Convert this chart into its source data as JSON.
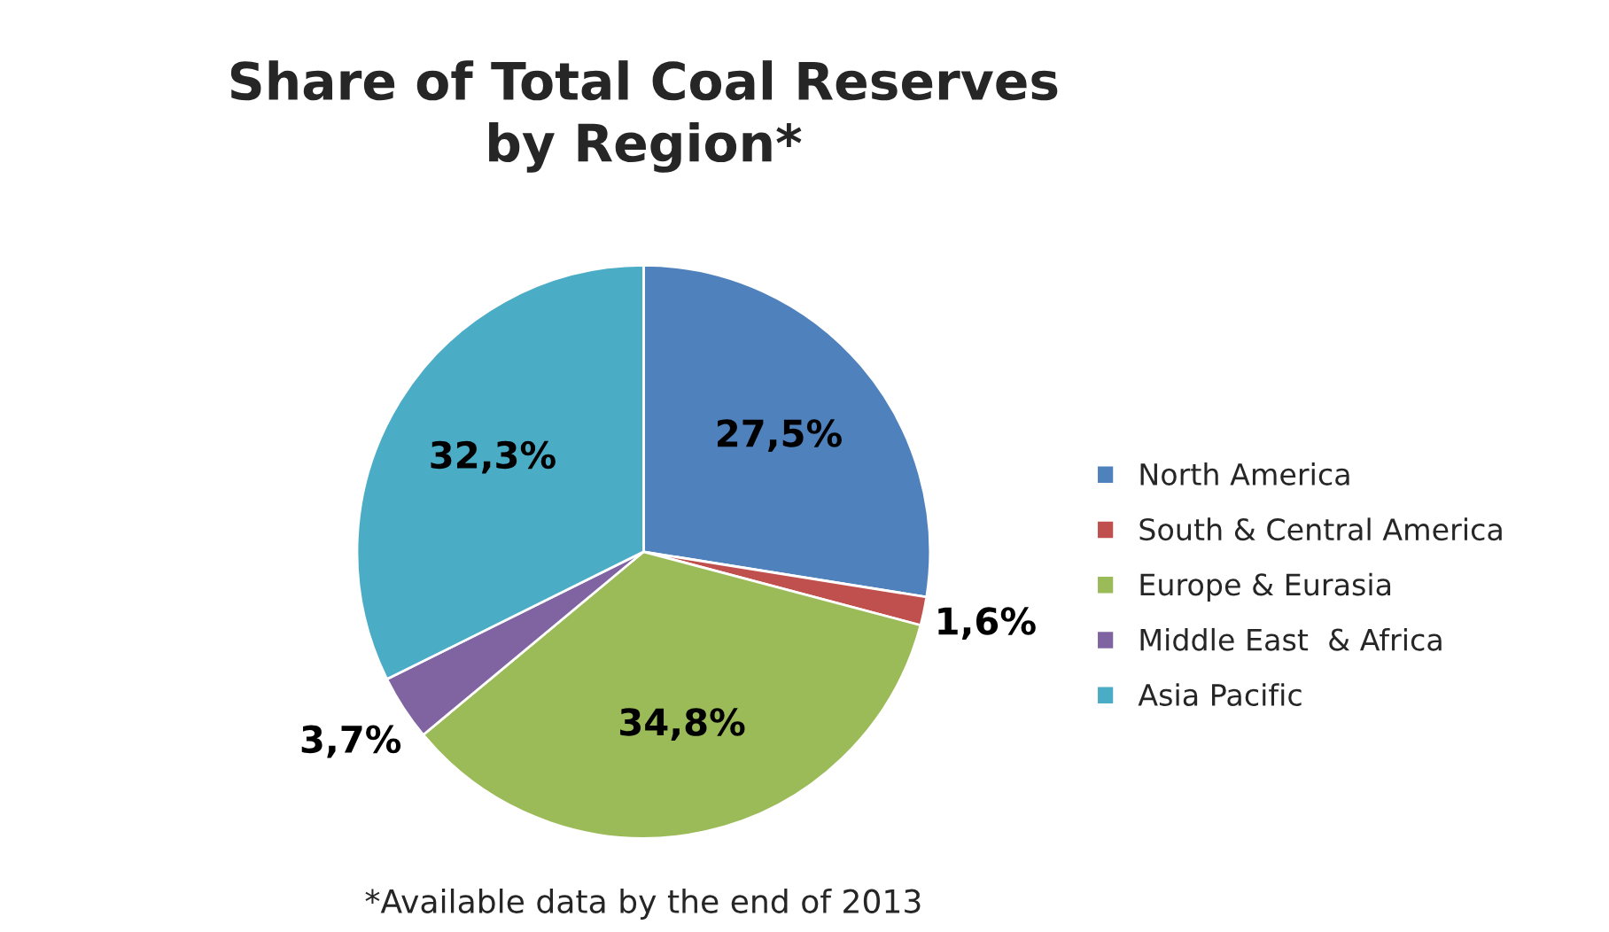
{
  "chart_data": {
    "type": "pie",
    "title": "Share of Total Coal Reserves\nby Region*",
    "categories": [
      "North America",
      "South & Central America",
      "Europe & Eurasia",
      "Middle East  & Africa",
      "Asia Pacific"
    ],
    "values": [
      27.5,
      1.6,
      34.8,
      3.7,
      32.3
    ],
    "value_labels": [
      "27,5%",
      "1,6%",
      "34,8%",
      "3,7%",
      "32,3%"
    ],
    "colors": [
      "#4f81bd",
      "#c0504d",
      "#9bbb59",
      "#8064a2",
      "#4bacc6"
    ],
    "legend": "right",
    "annotations": [
      "*Available data by the end of 2013"
    ]
  }
}
